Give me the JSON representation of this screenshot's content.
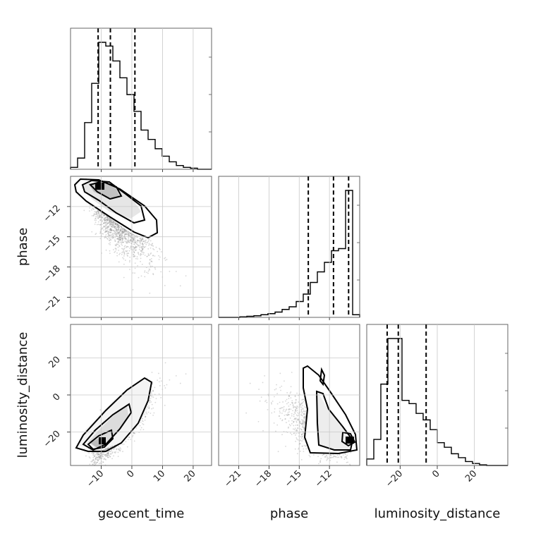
{
  "chart_data": {
    "type": "corner",
    "parameters": [
      "geocent_time",
      "phase",
      "luminosity_distance"
    ],
    "ranges": {
      "geocent_time": [
        -20,
        26
      ],
      "phase": [
        -23,
        -9
      ],
      "luminosity_distance": [
        -38,
        38
      ]
    },
    "ticks": {
      "geocent_time": [
        -10,
        0,
        10,
        20
      ],
      "phase": [
        -21,
        -18,
        -15,
        -12
      ],
      "luminosity_distance": [
        -20,
        0,
        20
      ]
    },
    "tick_labels": {
      "geocent_time": [
        "−10",
        "0",
        "10",
        "20"
      ],
      "phase": [
        "−21",
        "−18",
        "−15",
        "−12"
      ],
      "luminosity_distance": [
        "−20",
        "0",
        "20"
      ]
    },
    "quantile_lines": {
      "geocent_time": [
        -11,
        -7,
        1
      ],
      "phase": [
        -14.1,
        -11.6,
        -10.1
      ],
      "luminosity_distance": [
        -27,
        -21,
        -6
      ]
    },
    "histograms": {
      "geocent_time": {
        "edges": [
          -20,
          -17.7,
          -15.4,
          -13.1,
          -10.8,
          -8.5,
          -6.2,
          -3.9,
          -1.6,
          0.7,
          3,
          5.3,
          7.6,
          9.9,
          12.2,
          14.5,
          16.8,
          19.1,
          21.4,
          23.7,
          26
        ],
        "counts": [
          0.5,
          3,
          12.5,
          23,
          34,
          33,
          29,
          24.5,
          20,
          15.5,
          10.5,
          8,
          5.5,
          3.5,
          2,
          1,
          0.5,
          0.3,
          0,
          0
        ]
      },
      "phase": {
        "edges": [
          -23,
          -22.3,
          -21.6,
          -20.9,
          -20.2,
          -19.5,
          -18.8,
          -18.1,
          -17.4,
          -16.7,
          -16,
          -15.3,
          -14.6,
          -13.9,
          -13.2,
          -12.5,
          -11.8,
          -11.1,
          -10.4,
          -9.7,
          -9
        ],
        "counts": [
          0,
          0,
          0,
          0.1,
          0.2,
          0.3,
          0.5,
          0.7,
          1,
          1.5,
          2,
          3,
          4.4,
          6.6,
          8.6,
          10.4,
          12.6,
          13,
          24,
          0.5
        ]
      },
      "luminosity_distance": {
        "edges": [
          -38,
          -34.2,
          -30.4,
          -26.6,
          -22.8,
          -19,
          -15.2,
          -11.4,
          -7.6,
          -3.8,
          0,
          3.8,
          7.6,
          11.4,
          15.2,
          19,
          22.8,
          26.6,
          30.4,
          34.2,
          38
        ],
        "counts": [
          1,
          4,
          12.5,
          19.5,
          19.5,
          10,
          9.5,
          8,
          7,
          5.5,
          3.5,
          2.8,
          1.8,
          1.2,
          0.6,
          0.3,
          0.1,
          0,
          0,
          0
        ]
      }
    },
    "grid": true
  }
}
